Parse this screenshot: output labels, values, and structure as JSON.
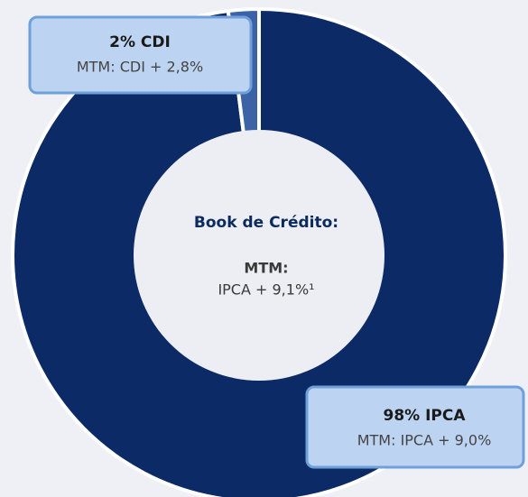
{
  "chart_data": {
    "type": "pie",
    "donut": true,
    "values": [
      98,
      2
    ],
    "value_labels": [
      "98% IPCA",
      "2% CDI"
    ],
    "sub_labels": [
      "MTM: IPCA + 9,0%",
      "MTM: CDI + 2,8%"
    ],
    "colors": [
      "#0b2a66",
      "#3b63a6"
    ],
    "center_title": "Book de Crédito:",
    "center_label": "MTM:",
    "center_value": "IPCA + 9,1%¹"
  }
}
